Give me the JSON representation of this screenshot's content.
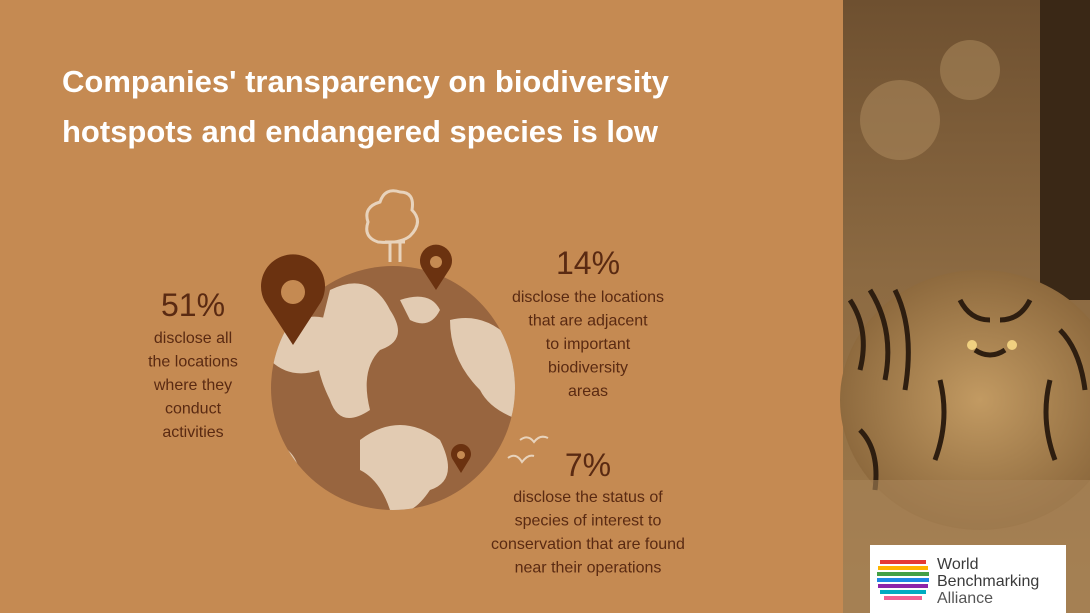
{
  "title": [
    "Companies' transparency on biodiversity",
    "hotspots and endangered species is low"
  ],
  "stats": [
    {
      "value": "51%",
      "lines": [
        "disclose all",
        "the locations",
        "where they",
        "conduct",
        "activities"
      ]
    },
    {
      "value": "14%",
      "lines": [
        "disclose the locations",
        "that are adjacent",
        "to important",
        "biodiversity",
        "areas"
      ]
    },
    {
      "value": "7%",
      "lines": [
        "disclose the status of",
        "species of interest to",
        "conservation that are found",
        "near their operations"
      ]
    }
  ],
  "logo": [
    "World",
    "Benchmarking",
    "Alliance"
  ]
}
